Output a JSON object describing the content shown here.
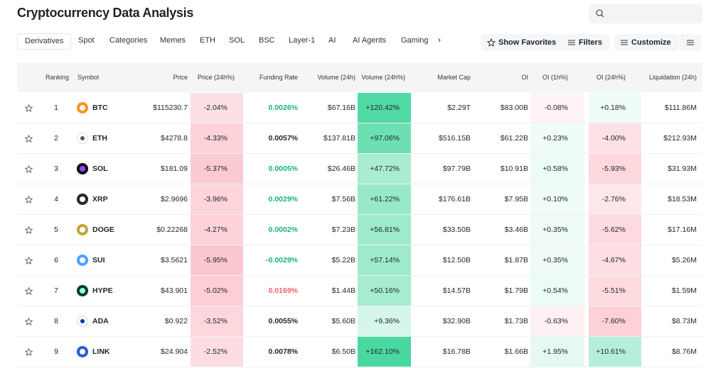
{
  "header": {
    "title": "Cryptocurrency Data Analysis"
  },
  "tabs": [
    "Derivatives",
    "Spot",
    "Categories",
    "Memes",
    "ETH",
    "SOL",
    "BSC",
    "Layer-1",
    "AI",
    "AI Agents",
    "Gaming"
  ],
  "buttons": [
    "Show Favorites",
    "Filters",
    "Customize"
  ],
  "table": {
    "columns": [
      "Ranking",
      "Symbol",
      "Price",
      "Price (24h%)",
      "Funding Rate",
      "Volume (24h)",
      "Volume (24h%)",
      "Market Cap",
      "OI",
      "OI (1h%)",
      "OI (24h%)",
      "Liquidation (24h)"
    ],
    "rows": [
      [
        "1",
        "BTC",
        "$115230.7",
        "-2.04%",
        "0.0026%",
        "$67.16B",
        "+120.42%",
        "$2.29T",
        "$83.00B",
        "-0.08%",
        "+0.18%",
        "$111.86M"
      ],
      [
        "2",
        "ETH",
        "$4278.8",
        "-4.33%",
        "0.0057%",
        "$137.81B",
        "+97.06%",
        "$516.15B",
        "$61.22B",
        "+0.23%",
        "-4.00%",
        "$212.93M"
      ],
      [
        "3",
        "SOL",
        "$181.09",
        "-5.37%",
        "0.0005%",
        "$26.46B",
        "+47.72%",
        "$97.79B",
        "$10.91B",
        "+0.58%",
        "-5.93%",
        "$31.93M"
      ],
      [
        "4",
        "XRP",
        "$2.9696",
        "-3.96%",
        "0.0029%",
        "$7.56B",
        "+61.22%",
        "$176.61B",
        "$7.95B",
        "+0.10%",
        "-2.76%",
        "$18.53M"
      ],
      [
        "5",
        "DOGE",
        "$0.22268",
        "-4.27%",
        "0.0002%",
        "$7.23B",
        "+56.81%",
        "$33.50B",
        "$3.46B",
        "+0.35%",
        "-5.62%",
        "$17.16M"
      ],
      [
        "6",
        "SUI",
        "$3.5621",
        "-5.95%",
        "-0.0029%",
        "$5.22B",
        "+57.14%",
        "$12.50B",
        "$1.87B",
        "+0.35%",
        "-4.67%",
        "$5.26M"
      ],
      [
        "7",
        "HYPE",
        "$43.901",
        "-5.02%",
        "0.0169%",
        "$1.44B",
        "+50.16%",
        "$14.57B",
        "$1.79B",
        "+0.54%",
        "-5.51%",
        "$1.59M"
      ],
      [
        "8",
        "ADA",
        "$0.922",
        "-3.52%",
        "0.0055%",
        "$5.60B",
        "+9.36%",
        "$32.90B",
        "$1.73B",
        "-0.63%",
        "-7.60%",
        "$8.73M"
      ],
      [
        "9",
        "LINK",
        "$24.904",
        "-2.52%",
        "0.0078%",
        "$6.50B",
        "+162.10%",
        "$16.78B",
        "$1.66B",
        "+1.95%",
        "+10.61%",
        "$8.76M"
      ]
    ],
    "funding_rate_colors": [
      "#16b56f",
      "#1e2329",
      "#16b56f",
      "#16b56f",
      "#16b56f",
      "#16b56f",
      "#f0616f",
      "#1e2329",
      "#1e2329"
    ]
  }
}
